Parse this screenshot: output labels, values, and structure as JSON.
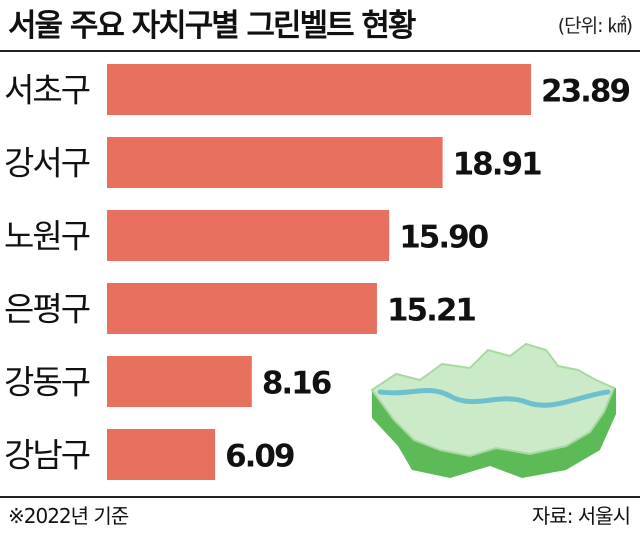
{
  "header": {
    "title": "서울 주요 자치구별 그린벨트 현황",
    "unit": "(단위: ㎢)"
  },
  "footer": {
    "note": "※2022년 기준",
    "source": "자료: 서울시"
  },
  "colors": {
    "bar": "#E8705F",
    "map_top": "#CBEBC8",
    "map_side": "#5DBB57",
    "river": "#6FC0CF"
  },
  "chart_data": {
    "type": "bar",
    "orientation": "horizontal",
    "categories": [
      "서초구",
      "강서구",
      "노원구",
      "은평구",
      "강동구",
      "강남구"
    ],
    "values": [
      23.89,
      18.91,
      15.9,
      15.21,
      8.16,
      6.09
    ],
    "value_labels": [
      "23.89",
      "18.91",
      "15.90",
      "15.21",
      "8.16",
      "6.09"
    ],
    "title": "서울 주요 자치구별 그린벨트 현황",
    "xlabel": "",
    "ylabel": "",
    "xlim": [
      0,
      23.89
    ],
    "grid": false,
    "legend": "none"
  }
}
